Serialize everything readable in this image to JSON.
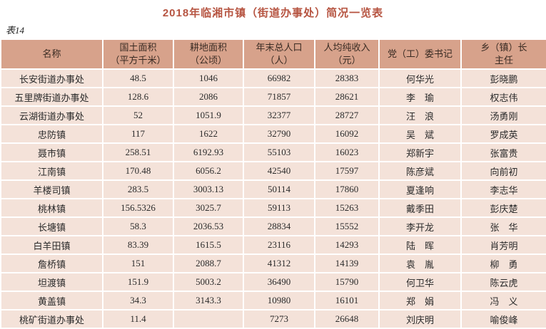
{
  "title": "2018年临湘市镇（街道办事处）简况一览表",
  "table_label": "表14",
  "colors": {
    "title": "#b65441",
    "header_bg": "#d7a28b",
    "row_bg": "#f4e2d9",
    "border": "#ffffff",
    "text": "#2b2b2b",
    "header_text": "#3a2b23"
  },
  "table": {
    "columns": [
      {
        "lines": [
          "名称"
        ]
      },
      {
        "lines": [
          "国土面积",
          "（平方千米）"
        ]
      },
      {
        "lines": [
          "耕地面积",
          "（公顷）"
        ]
      },
      {
        "lines": [
          "年末总人口",
          "（人）"
        ]
      },
      {
        "lines": [
          "人均纯收入",
          "（元）"
        ]
      },
      {
        "lines": [
          "党（工）委书记"
        ]
      },
      {
        "lines": [
          "乡（镇）长",
          "主任"
        ]
      }
    ],
    "rows": [
      {
        "cells": [
          "长安街道办事处",
          "48.5",
          "1046",
          "66982",
          "28383",
          "何华光",
          "彭晓鹏"
        ]
      },
      {
        "cells": [
          "五里牌街道办事处",
          "128.6",
          "2086",
          "71857",
          "28621",
          "李　瑜",
          "权志伟"
        ]
      },
      {
        "cells": [
          "云湖街道办事处",
          "52",
          "1051.9",
          "32377",
          "28727",
          "汪　浪",
          "汤勇刚"
        ]
      },
      {
        "cells": [
          "忠防镇",
          "117",
          "1622",
          "32790",
          "16092",
          "吴　斌",
          "罗成英"
        ]
      },
      {
        "cells": [
          "聂市镇",
          "258.51",
          "6192.93",
          "55103",
          "16023",
          "郑新宇",
          "张富贵"
        ]
      },
      {
        "cells": [
          "江南镇",
          "170.48",
          "6056.2",
          "42540",
          "17597",
          "陈彦斌",
          "向前初"
        ]
      },
      {
        "cells": [
          "羊楼司镇",
          "283.5",
          "3003.13",
          "50114",
          "17860",
          "夏逢响",
          "李志华"
        ]
      },
      {
        "cells": [
          "桃林镇",
          "156.5326",
          "3025.7",
          "59113",
          "15263",
          "戴季田",
          "彭庆楚"
        ]
      },
      {
        "cells": [
          "长塘镇",
          "58.3",
          "2036.53",
          "28834",
          "15552",
          "李开龙",
          "张　华"
        ]
      },
      {
        "cells": [
          "白羊田镇",
          "83.39",
          "1615.5",
          "23116",
          "14293",
          "陆　晖",
          "肖芳明"
        ]
      },
      {
        "cells": [
          "詹桥镇",
          "151",
          "2088.7",
          "41312",
          "14139",
          "袁　胤",
          "柳　勇"
        ]
      },
      {
        "cells": [
          "坦渡镇",
          "151.9",
          "5003.2",
          "36490",
          "15790",
          "何卫华",
          "陈云虎"
        ]
      },
      {
        "cells": [
          "黄盖镇",
          "34.3",
          "3143.3",
          "10980",
          "16101",
          "郑　娟",
          "冯　义"
        ]
      },
      {
        "cells": [
          "桃矿街道办事处",
          "11.4",
          "",
          "7273",
          "26648",
          "刘庆明",
          "喻俊峰"
        ]
      }
    ]
  }
}
